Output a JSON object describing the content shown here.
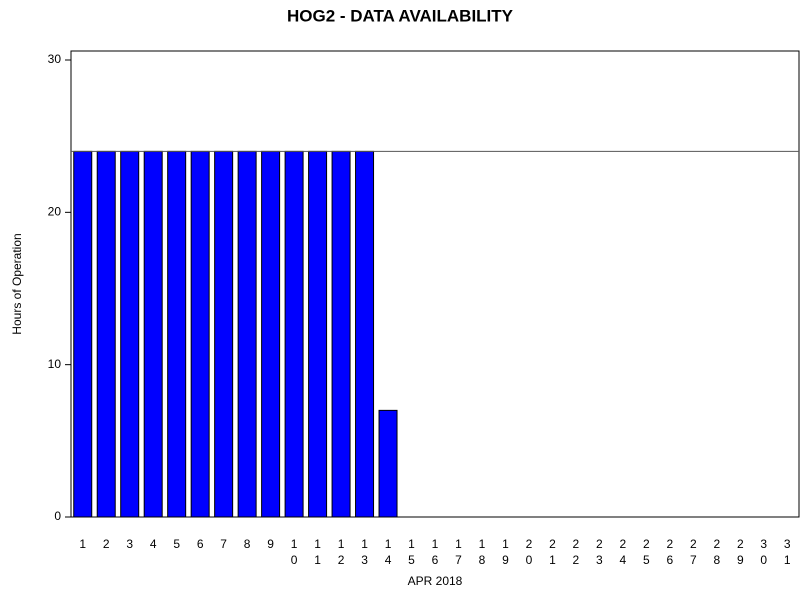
{
  "chart_data": {
    "type": "bar",
    "title": "HOG2 - DATA AVAILABILITY",
    "x_label": "APR 2018",
    "y_label": "Hours of Operation",
    "categories": [
      "1",
      "2",
      "3",
      "4",
      "5",
      "6",
      "7",
      "8",
      "9",
      "10",
      "11",
      "12",
      "13",
      "14",
      "15",
      "16",
      "17",
      "18",
      "19",
      "20",
      "21",
      "22",
      "23",
      "24",
      "25",
      "26",
      "27",
      "28",
      "29",
      "30",
      "31"
    ],
    "values": [
      24,
      24,
      24,
      24,
      24,
      24,
      24,
      24,
      24,
      24,
      24,
      24,
      24,
      7,
      0,
      0,
      0,
      0,
      0,
      0,
      0,
      0,
      0,
      0,
      0,
      0,
      0,
      0,
      0,
      0,
      0
    ],
    "color": "#0000ff",
    "reference_line": 24,
    "ylim": [
      0,
      30
    ],
    "yticks": [
      0,
      10,
      20,
      30
    ]
  }
}
